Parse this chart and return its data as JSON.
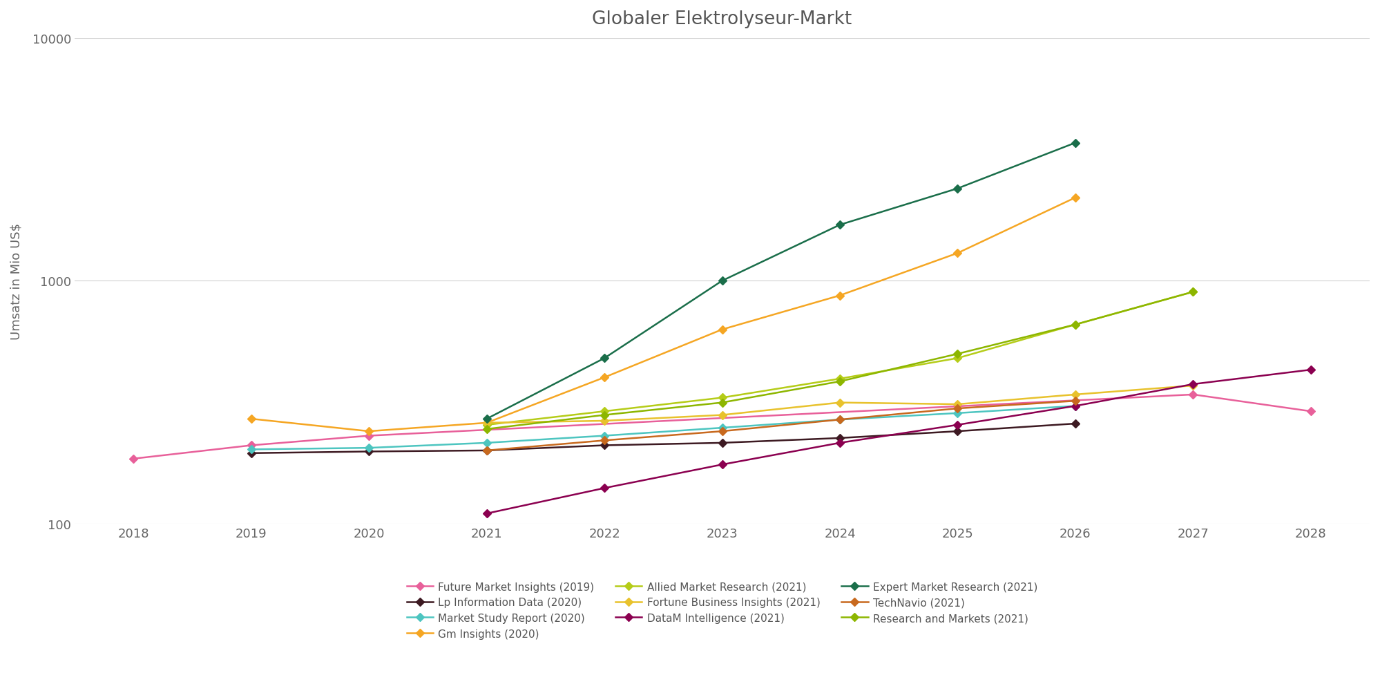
{
  "title": "Globaler Elektrolyseur-Markt",
  "ylabel": "Umsatz in Mio US$",
  "series": [
    {
      "label": "Future Market Insights (2019)",
      "color": "#e8609a",
      "marker": "D",
      "x": [
        2018,
        2019,
        2020,
        2027,
        2028
      ],
      "y": [
        185,
        210,
        230,
        340,
        290
      ]
    },
    {
      "label": "Lp Information Data (2020)",
      "color": "#3d1a22",
      "marker": "D",
      "x": [
        2019,
        2020,
        2021,
        2022,
        2023,
        2024,
        2025,
        2026
      ],
      "y": [
        195,
        198,
        200,
        210,
        215,
        225,
        240,
        258
      ]
    },
    {
      "label": "Market Study Report (2020)",
      "color": "#4dc5c0",
      "marker": "D",
      "x": [
        2019,
        2020,
        2021,
        2022,
        2023,
        2024,
        2025,
        2026
      ],
      "y": [
        202,
        205,
        215,
        230,
        248,
        268,
        285,
        305
      ]
    },
    {
      "label": "Gm Insights (2020)",
      "color": "#f5a623",
      "marker": "s",
      "x": [
        2019,
        2020,
        2021,
        2022,
        2023,
        2024,
        2025,
        2026
      ],
      "y": [
        270,
        240,
        260,
        400,
        630,
        870,
        1300,
        2200
      ]
    },
    {
      "label": "Allied Market Research (2021)",
      "color": "#b5cc18",
      "marker": "D",
      "x": [
        2021,
        2022,
        2023,
        2024,
        2025,
        2026,
        2027
      ],
      "y": [
        255,
        290,
        330,
        395,
        480,
        660,
        900
      ]
    },
    {
      "label": "Fortune Business Insights (2021)",
      "color": "#e8c22d",
      "marker": "s",
      "x": [
        2021,
        2022,
        2023,
        2024,
        2025,
        2026,
        2027
      ],
      "y": [
        260,
        265,
        280,
        315,
        310,
        340,
        370
      ]
    },
    {
      "label": "DataM Intelligence (2021)",
      "color": "#8b0050",
      "marker": "D",
      "x": [
        2021,
        2022,
        2023,
        2024,
        2025,
        2026,
        2027,
        2028
      ],
      "y": [
        110,
        140,
        175,
        215,
        255,
        305,
        375,
        430
      ]
    },
    {
      "label": "Expert Market Research (2021)",
      "color": "#1a6e4a",
      "marker": "D",
      "x": [
        2021,
        2022,
        2023,
        2024,
        2025,
        2026
      ],
      "y": [
        270,
        480,
        1000,
        1700,
        2400,
        3700
      ]
    },
    {
      "label": "TechNavio (2021)",
      "color": "#c8691e",
      "marker": "D",
      "x": [
        2021,
        2022,
        2023,
        2024,
        2025,
        2026
      ],
      "y": [
        200,
        220,
        240,
        268,
        298,
        320
      ]
    },
    {
      "label": "Research and Markets (2021)",
      "color": "#8db600",
      "marker": "D",
      "x": [
        2021,
        2022,
        2023,
        2024,
        2025,
        2026,
        2027
      ],
      "y": [
        245,
        280,
        315,
        385,
        500,
        660,
        900
      ]
    }
  ],
  "legend_order": [
    0,
    1,
    2,
    3,
    4,
    5,
    6,
    7,
    8,
    9
  ],
  "legend_display_order": [
    0,
    3,
    6,
    1,
    4,
    7,
    2,
    5,
    8,
    9
  ],
  "xlim": [
    2017.5,
    2028.5
  ],
  "ylim": [
    100,
    10000
  ],
  "xticks": [
    2018,
    2019,
    2020,
    2021,
    2022,
    2023,
    2024,
    2025,
    2026,
    2027,
    2028
  ],
  "yticks": [
    100,
    1000,
    10000
  ],
  "background_color": "#ffffff",
  "grid_color": "#d0d0d0",
  "title_fontsize": 19,
  "label_fontsize": 13,
  "tick_fontsize": 13
}
